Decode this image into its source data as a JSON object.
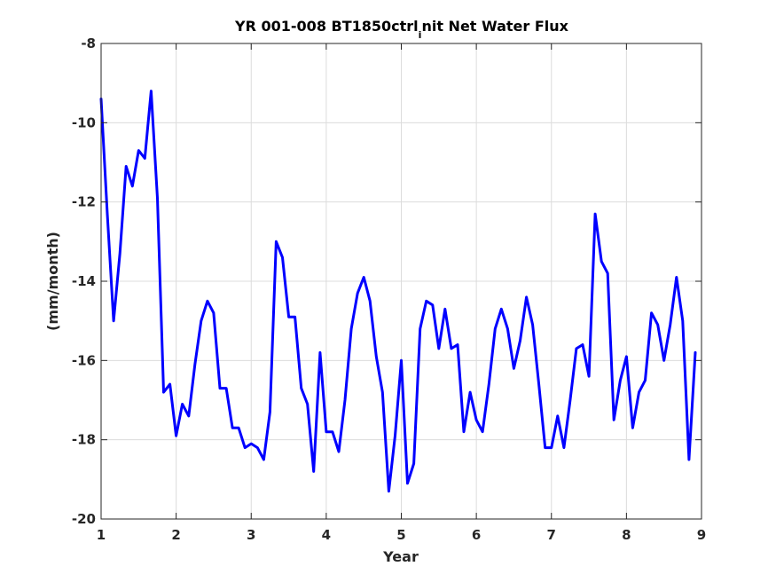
{
  "chart_data": {
    "type": "line",
    "title": "YR 001-008 BT1850ctrl",
    "title_subscript": "i",
    "title_rest": "nit Net Water Flux",
    "xlabel": "Year",
    "ylabel": "(mm/month)",
    "xlim": [
      1,
      9
    ],
    "ylim": [
      -20,
      -8
    ],
    "xticks": [
      "1",
      "2",
      "3",
      "4",
      "5",
      "6",
      "7",
      "8",
      "9"
    ],
    "yticks": [
      "-20",
      "-18",
      "-16",
      "-14",
      "-12",
      "-10",
      "-8"
    ],
    "grid": true,
    "colors": {
      "line": "#0000ff",
      "axes": "#262626",
      "grid": "#dcdcdc"
    },
    "series": [
      {
        "x": [
          1.0,
          1.083,
          1.167,
          1.25,
          1.333,
          1.417,
          1.5,
          1.583,
          1.667,
          1.75,
          1.833,
          1.917,
          2.0,
          2.083,
          2.167,
          2.25,
          2.333,
          2.417,
          2.5,
          2.583,
          2.667,
          2.75,
          2.833,
          2.917,
          3.0,
          3.083,
          3.167,
          3.25,
          3.333,
          3.417,
          3.5,
          3.583,
          3.667,
          3.75,
          3.833,
          3.917,
          4.0,
          4.083,
          4.167,
          4.25,
          4.333,
          4.417,
          4.5,
          4.583,
          4.667,
          4.75,
          4.833,
          4.917,
          5.0,
          5.083,
          5.167,
          5.25,
          5.333,
          5.417,
          5.5,
          5.583,
          5.667,
          5.75,
          5.833,
          5.917,
          6.0,
          6.083,
          6.167,
          6.25,
          6.333,
          6.417,
          6.5,
          6.583,
          6.667,
          6.75,
          6.833,
          6.917,
          7.0,
          7.083,
          7.167,
          7.25,
          7.333,
          7.417,
          7.5,
          7.583,
          7.667,
          7.75,
          7.833,
          7.917,
          8.0,
          8.083,
          8.167,
          8.25,
          8.333,
          8.417,
          8.5,
          8.583,
          8.667,
          8.75,
          8.833,
          8.917
        ],
        "values": [
          -9.4,
          -12.3,
          -15.0,
          -13.3,
          -11.1,
          -11.6,
          -10.7,
          -10.9,
          -9.2,
          -11.9,
          -16.8,
          -16.6,
          -17.9,
          -17.1,
          -17.4,
          -16.1,
          -15.0,
          -14.5,
          -14.8,
          -16.7,
          -16.7,
          -17.7,
          -17.7,
          -18.2,
          -18.1,
          -18.2,
          -18.5,
          -17.3,
          -13.0,
          -13.4,
          -14.9,
          -14.9,
          -16.7,
          -17.1,
          -18.8,
          -15.8,
          -17.8,
          -17.8,
          -18.3,
          -17.0,
          -15.2,
          -14.3,
          -13.9,
          -14.5,
          -15.9,
          -16.8,
          -19.3,
          -17.9,
          -16.0,
          -19.1,
          -18.6,
          -15.2,
          -14.5,
          -14.6,
          -15.7,
          -14.7,
          -15.7,
          -15.6,
          -17.8,
          -16.8,
          -17.5,
          -17.8,
          -16.6,
          -15.2,
          -14.7,
          -15.2,
          -16.2,
          -15.5,
          -14.4,
          -15.1,
          -16.6,
          -18.2,
          -18.2,
          -17.4,
          -18.2,
          -17.0,
          -15.7,
          -15.6,
          -16.4,
          -12.3,
          -13.5,
          -13.8,
          -17.5,
          -16.5,
          -15.9,
          -17.7,
          -16.8,
          -16.5,
          -14.8,
          -15.1,
          -16.0,
          -15.1,
          -13.9,
          -15.0,
          -18.5,
          -15.8
        ]
      }
    ]
  }
}
